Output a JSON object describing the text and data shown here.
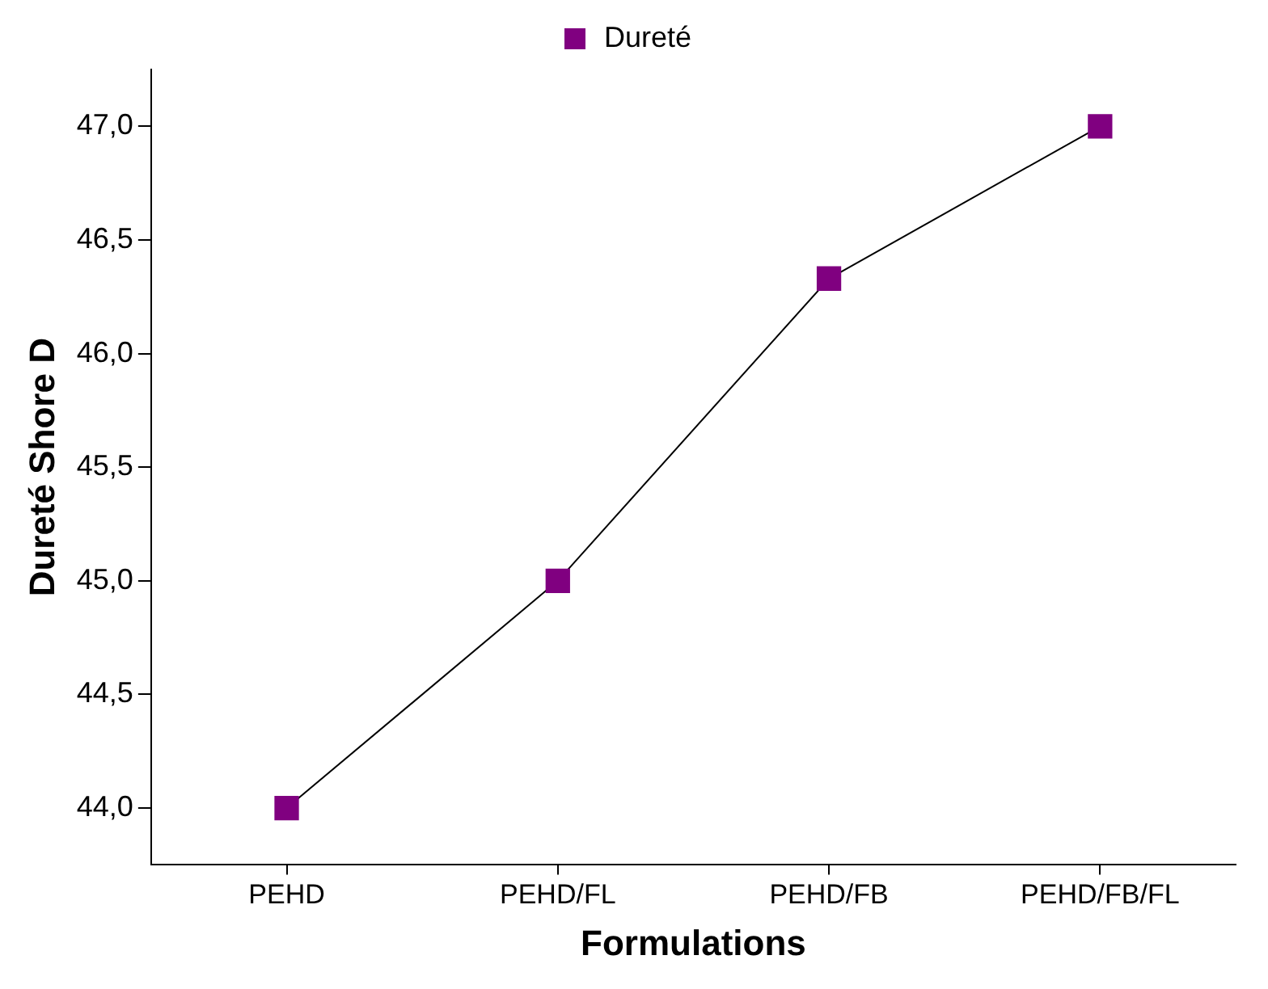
{
  "chart_data": {
    "type": "line",
    "xlabel": "Formulations",
    "ylabel": "Dureté Shore D",
    "categories": [
      "PEHD",
      "PEHD/FL",
      "PEHD/FB",
      "PEHD/FB/FL"
    ],
    "series": [
      {
        "name": "Dureté",
        "color": "#800080",
        "values": [
          44.0,
          45.0,
          46.33,
          47.0
        ]
      }
    ],
    "ylim": [
      43.75,
      47.25
    ],
    "yticks": [
      {
        "value": 44,
        "label": "44,0"
      },
      {
        "value": 44.5,
        "label": "44,5"
      },
      {
        "value": 45,
        "label": "45,0"
      },
      {
        "value": 45.5,
        "label": "45,5"
      },
      {
        "value": 46,
        "label": "46,0"
      },
      {
        "value": 46.5,
        "label": "46,5"
      },
      {
        "value": 47,
        "label": "47,0"
      }
    ],
    "grid": false,
    "legend": "top",
    "marker": "square",
    "line_style": "solid"
  }
}
